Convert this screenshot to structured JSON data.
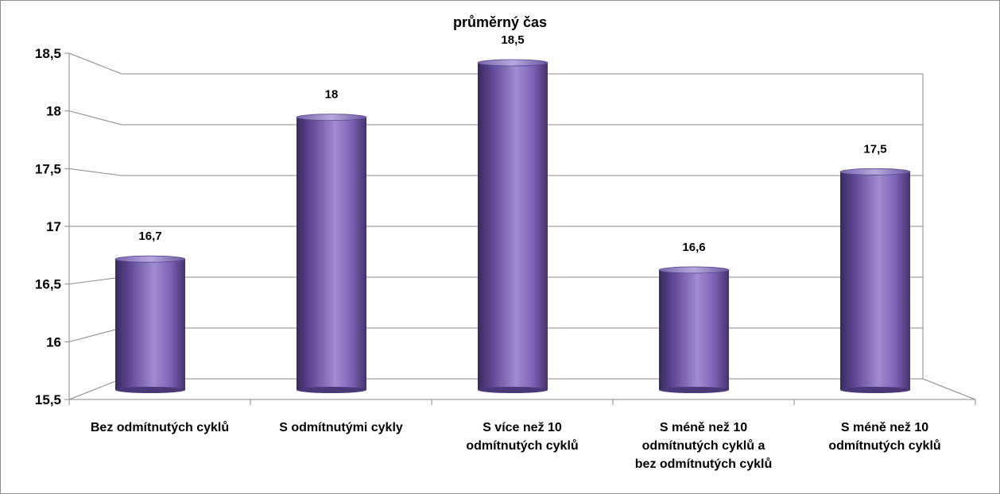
{
  "chart_data": {
    "type": "bar",
    "style": "3d-cylinder",
    "title": "průměrný čas",
    "categories": [
      [
        "Bez odmítnutých  cyklů"
      ],
      [
        "S odmítnutými  cykly"
      ],
      [
        "S  více než 10",
        "odmítnutých  cyklů"
      ],
      [
        "S méně než 10",
        "odmítnutých  cyklů a",
        "bez odmítnutých  cyklů"
      ],
      [
        "S méně než 10",
        "odmítnutých  cyklů"
      ]
    ],
    "values": [
      16.7,
      18,
      18.5,
      16.6,
      17.5
    ],
    "data_labels": [
      "16,7",
      "18",
      "18,5",
      "16,6",
      "17,5"
    ],
    "ylim": [
      15.5,
      18.5
    ],
    "yticks": [
      15.5,
      16,
      16.5,
      17,
      17.5,
      18,
      18.5
    ],
    "ytick_labels": [
      "15,5",
      "16",
      "16,5",
      "17",
      "17,5",
      "18",
      "18,5"
    ],
    "grid": true,
    "legend": "none",
    "colors": {
      "bar_dark": "#3a2a5a",
      "bar_mid": "#6a52a0",
      "bar_light": "#a08cd0",
      "grid": "#808080"
    }
  }
}
